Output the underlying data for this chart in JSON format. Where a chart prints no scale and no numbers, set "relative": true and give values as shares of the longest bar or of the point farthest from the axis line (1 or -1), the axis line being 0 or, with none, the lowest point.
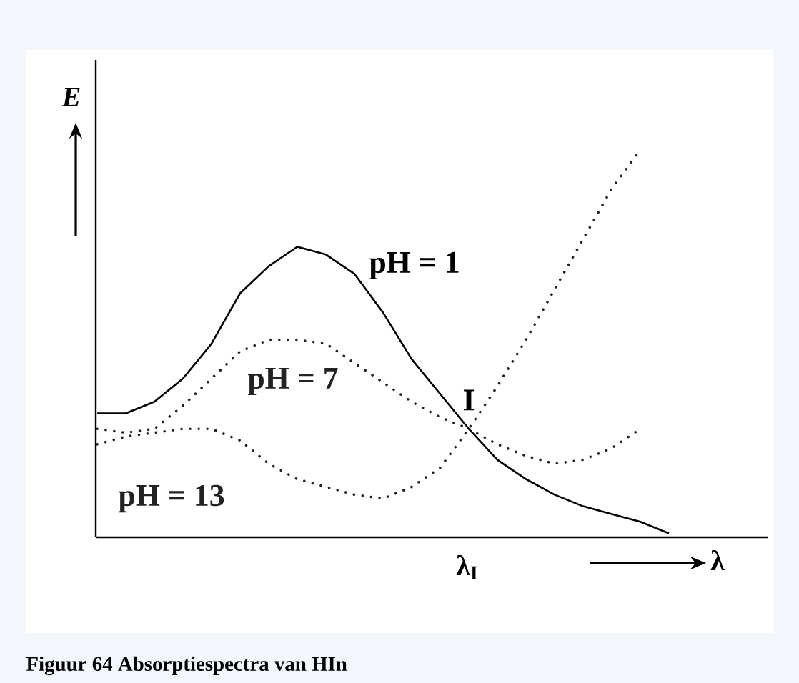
{
  "chart_data": {
    "type": "line",
    "relative": true,
    "xlabel": "λ",
    "ylabel": "E",
    "categories": [
      null,
      null,
      null,
      null,
      null,
      null,
      null,
      null,
      null,
      null,
      null,
      null,
      null,
      null,
      null,
      null,
      null,
      null,
      null,
      null,
      null
    ],
    "series": [
      {
        "name": "pH = 1",
        "color": "#000000",
        "line_style": "solid",
        "values": [
          0.32,
          0.32,
          0.35,
          0.41,
          0.5,
          0.63,
          0.7,
          0.75,
          0.73,
          0.68,
          0.58,
          0.46,
          0.37,
          0.28,
          0.2,
          0.15,
          0.11,
          0.08,
          0.06,
          0.04,
          0.01
        ]
      },
      {
        "name": "pH = 7",
        "color": "#222222",
        "line_style": "dotted",
        "values": [
          0.28,
          0.27,
          0.28,
          0.34,
          0.41,
          0.48,
          0.51,
          0.51,
          0.5,
          0.45,
          0.4,
          0.35,
          0.31,
          0.28,
          0.24,
          0.21,
          0.19,
          0.2,
          0.23,
          0.28,
          null
        ]
      },
      {
        "name": "pH = 13",
        "color": "#222222",
        "line_style": "dotted",
        "values": [
          0.24,
          0.26,
          0.27,
          0.28,
          0.28,
          0.25,
          0.19,
          0.15,
          0.13,
          0.11,
          0.1,
          0.13,
          0.18,
          0.28,
          0.39,
          0.51,
          0.64,
          0.77,
          0.9,
          1,
          null
        ]
      }
    ],
    "annotations": [
      "I",
      "λ$_{I}$",
      "Figuur 64 Absorptiespectra van HIn"
    ]
  }
}
